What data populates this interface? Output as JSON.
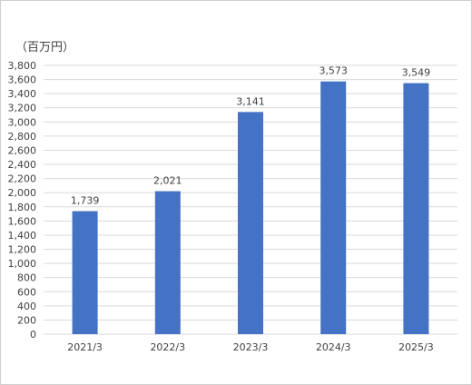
{
  "chart_data": {
    "type": "bar",
    "unit_label": "（百万円）",
    "categories": [
      "2021/3",
      "2022/3",
      "2023/3",
      "2024/3",
      "2025/3"
    ],
    "values": [
      1739,
      2021,
      3141,
      3573,
      3549
    ],
    "value_labels": [
      "1,739",
      "2,021",
      "3,141",
      "3,573",
      "3,549"
    ],
    "ylim": [
      0,
      3800
    ],
    "ytick_step": 200,
    "ytick_labels": [
      "0",
      "200",
      "400",
      "600",
      "800",
      "1,000",
      "1,200",
      "1,400",
      "1,600",
      "1,800",
      "2,000",
      "2,200",
      "2,400",
      "2,600",
      "2,800",
      "3,000",
      "3,200",
      "3,400",
      "3,600",
      "3,800"
    ],
    "grid": true,
    "legend": "none",
    "bar_color": "#4472C4",
    "grid_color": "#d9d9d9"
  }
}
